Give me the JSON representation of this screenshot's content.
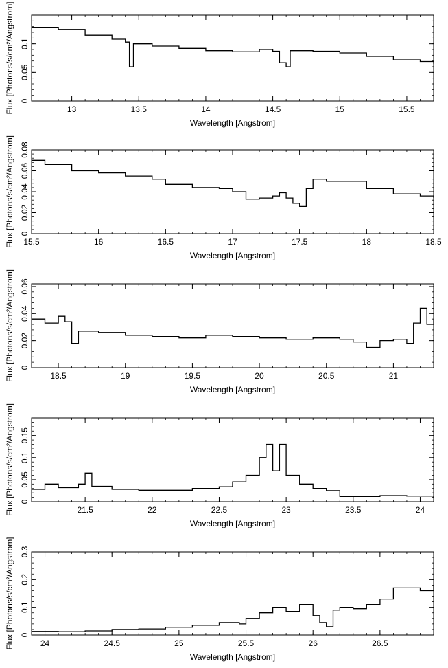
{
  "chart_data": [
    {
      "type": "line",
      "xlabel": "Wavelength [Angstrom]",
      "ylabel": "Flux [Photons/s/cm²/Angstrom]",
      "xlim": [
        12.7,
        15.7
      ],
      "ylim": [
        0,
        0.15
      ],
      "xticks": [
        13,
        13.5,
        14,
        14.5,
        15,
        15.5
      ],
      "xtick_labels": [
        "13",
        "13.5",
        "14",
        "14.5",
        "15",
        "15.5"
      ],
      "yticks": [
        0,
        0.05,
        0.1
      ],
      "ytick_labels": [
        "0",
        "0.05",
        "0.1"
      ],
      "series": [
        {
          "style": "step",
          "x": [
            12.7,
            12.9,
            13.1,
            13.3,
            13.4,
            13.43,
            13.46,
            13.6,
            13.8,
            14.0,
            14.2,
            14.4,
            14.5,
            14.55,
            14.6,
            14.63,
            14.8,
            15.0,
            15.2,
            15.4,
            15.6,
            15.7
          ],
          "y": [
            0.128,
            0.125,
            0.115,
            0.108,
            0.103,
            0.06,
            0.1,
            0.096,
            0.092,
            0.088,
            0.086,
            0.09,
            0.087,
            0.067,
            0.06,
            0.088,
            0.087,
            0.084,
            0.078,
            0.072,
            0.069,
            0.065
          ]
        }
      ]
    },
    {
      "type": "line",
      "xlabel": "Wavelength [Angstrom]",
      "ylabel": "Flux [Photons/s/cm²/Angstrom]",
      "xlim": [
        15.5,
        18.5
      ],
      "ylim": [
        0,
        0.08
      ],
      "xticks": [
        15.5,
        16,
        16.5,
        17,
        17.5,
        18,
        18.5
      ],
      "xtick_labels": [
        "15.5",
        "16",
        "16.5",
        "17",
        "17.5",
        "18",
        "18.5"
      ],
      "yticks": [
        0,
        0.02,
        0.04,
        0.06,
        0.08
      ],
      "ytick_labels": [
        "0",
        "0.02",
        "0.04",
        "0.06",
        "0.08"
      ],
      "series": [
        {
          "style": "step",
          "x": [
            15.5,
            15.6,
            15.8,
            16.0,
            16.2,
            16.4,
            16.5,
            16.7,
            16.9,
            17.0,
            17.1,
            17.2,
            17.3,
            17.35,
            17.4,
            17.45,
            17.5,
            17.55,
            17.6,
            17.7,
            17.8,
            18.0,
            18.2,
            18.4,
            18.5
          ],
          "y": [
            0.07,
            0.066,
            0.06,
            0.058,
            0.055,
            0.052,
            0.047,
            0.044,
            0.043,
            0.04,
            0.033,
            0.034,
            0.036,
            0.039,
            0.034,
            0.029,
            0.026,
            0.043,
            0.052,
            0.05,
            0.05,
            0.043,
            0.038,
            0.036,
            0.034
          ]
        }
      ]
    },
    {
      "type": "line",
      "xlabel": "Wavelength [Angstrom]",
      "ylabel": "Flux [Photons/s/cm²/Angstrom]",
      "xlim": [
        18.3,
        21.3
      ],
      "ylim": [
        0,
        0.062
      ],
      "xticks": [
        18.5,
        19,
        19.5,
        20,
        20.5,
        21
      ],
      "xtick_labels": [
        "18.5",
        "19",
        "19.5",
        "20",
        "20.5",
        "21"
      ],
      "yticks": [
        0,
        0.02,
        0.04,
        0.06
      ],
      "ytick_labels": [
        "0",
        "0.02",
        "0.04",
        "0.06"
      ],
      "series": [
        {
          "style": "step",
          "x": [
            18.3,
            18.4,
            18.5,
            18.55,
            18.6,
            18.65,
            18.8,
            19.0,
            19.2,
            19.4,
            19.6,
            19.8,
            20.0,
            20.2,
            20.4,
            20.6,
            20.7,
            20.8,
            20.9,
            21.0,
            21.1,
            21.15,
            21.2,
            21.25,
            21.3
          ],
          "y": [
            0.036,
            0.033,
            0.038,
            0.034,
            0.018,
            0.027,
            0.026,
            0.024,
            0.023,
            0.022,
            0.024,
            0.023,
            0.022,
            0.021,
            0.022,
            0.021,
            0.019,
            0.015,
            0.02,
            0.021,
            0.018,
            0.033,
            0.044,
            0.032,
            0.035
          ]
        }
      ]
    },
    {
      "type": "line",
      "xlabel": "Wavelength [Angstrom]",
      "ylabel": "Flux [Photons/s/cm²/Angstrom]",
      "xlim": [
        21.1,
        24.1
      ],
      "ylim": [
        0,
        0.19
      ],
      "xticks": [
        21.5,
        22,
        22.5,
        23,
        23.5,
        24
      ],
      "xtick_labels": [
        "21.5",
        "22",
        "22.5",
        "23",
        "23.5",
        "24"
      ],
      "yticks": [
        0,
        0.05,
        0.1,
        0.15
      ],
      "ytick_labels": [
        "0",
        "0.05",
        "0.1",
        "0.15"
      ],
      "series": [
        {
          "style": "step",
          "x": [
            21.1,
            21.2,
            21.3,
            21.45,
            21.5,
            21.55,
            21.7,
            21.9,
            22.1,
            22.3,
            22.5,
            22.6,
            22.7,
            22.8,
            22.85,
            22.9,
            22.95,
            23.0,
            23.1,
            23.2,
            23.3,
            23.4,
            23.5,
            23.7,
            23.9,
            24.1
          ],
          "y": [
            0.028,
            0.04,
            0.032,
            0.04,
            0.065,
            0.035,
            0.028,
            0.026,
            0.026,
            0.03,
            0.034,
            0.045,
            0.06,
            0.1,
            0.13,
            0.07,
            0.13,
            0.06,
            0.04,
            0.03,
            0.025,
            0.012,
            0.012,
            0.014,
            0.013,
            0.01
          ]
        }
      ]
    },
    {
      "type": "line",
      "xlabel": "Wavelength [Angstrom]",
      "ylabel": "Flux [Photons/s/cm²/Angstrom]",
      "xlim": [
        23.9,
        26.9
      ],
      "ylim": [
        0,
        0.3
      ],
      "xticks": [
        24,
        24.5,
        25,
        25.5,
        26,
        26.5
      ],
      "xtick_labels": [
        "24",
        "24.5",
        "25",
        "25.5",
        "26",
        "26.5"
      ],
      "yticks": [
        0,
        0.1,
        0.2,
        0.3
      ],
      "ytick_labels": [
        "0",
        "0.1",
        "0.2",
        "0.3"
      ],
      "series": [
        {
          "style": "step",
          "x": [
            23.9,
            24.1,
            24.3,
            24.5,
            24.7,
            24.9,
            25.1,
            25.3,
            25.45,
            25.5,
            25.6,
            25.7,
            25.8,
            25.9,
            26.0,
            26.05,
            26.1,
            26.15,
            26.2,
            26.3,
            26.4,
            26.5,
            26.6,
            26.7,
            26.8,
            26.9
          ],
          "y": [
            0.013,
            0.012,
            0.015,
            0.02,
            0.022,
            0.028,
            0.035,
            0.045,
            0.04,
            0.06,
            0.08,
            0.1,
            0.085,
            0.11,
            0.07,
            0.045,
            0.03,
            0.09,
            0.1,
            0.095,
            0.11,
            0.13,
            0.17,
            0.17,
            0.16,
            0.18
          ]
        }
      ]
    }
  ]
}
